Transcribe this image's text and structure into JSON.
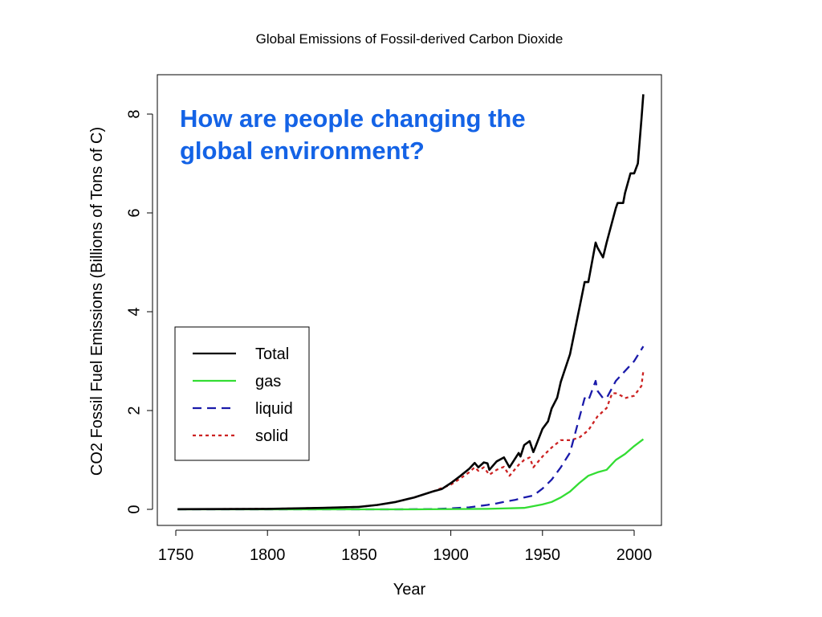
{
  "overlay_text": {
    "line1": "How are people changing the",
    "line2": "global environment?"
  },
  "chart_data": {
    "type": "line",
    "title": "Global Emissions of Fossil-derived Carbon Dioxide",
    "xlabel": "Year",
    "ylabel": "CO2 Fossil Fuel Emissions (Billions of Tons of C)",
    "xlim": [
      1750,
      2010
    ],
    "ylim": [
      0,
      8.6
    ],
    "xticks": [
      1750,
      1800,
      1850,
      1900,
      1950,
      2000
    ],
    "yticks": [
      0,
      2,
      4,
      6,
      8
    ],
    "grid": false,
    "legend_position": "left",
    "series": [
      {
        "name": "Total",
        "color": "#000000",
        "dash": "solid",
        "x": [
          1751,
          1800,
          1830,
          1850,
          1860,
          1870,
          1880,
          1890,
          1895,
          1900,
          1905,
          1910,
          1913,
          1915,
          1918,
          1920,
          1921,
          1925,
          1929,
          1932,
          1937,
          1938,
          1940,
          1943,
          1945,
          1946,
          1950,
          1953,
          1955,
          1958,
          1960,
          1965,
          1970,
          1973,
          1975,
          1979,
          1980,
          1983,
          1985,
          1990,
          1991,
          1994,
          1995,
          1998,
          2000,
          2002,
          2004,
          2005
        ],
        "y": [
          0.003,
          0.01,
          0.03,
          0.05,
          0.09,
          0.15,
          0.24,
          0.36,
          0.41,
          0.53,
          0.67,
          0.82,
          0.94,
          0.85,
          0.95,
          0.93,
          0.8,
          0.97,
          1.05,
          0.85,
          1.14,
          1.07,
          1.3,
          1.38,
          1.16,
          1.25,
          1.63,
          1.78,
          2.04,
          2.26,
          2.58,
          3.14,
          4.05,
          4.6,
          4.6,
          5.4,
          5.3,
          5.1,
          5.4,
          6.1,
          6.2,
          6.2,
          6.4,
          6.8,
          6.8,
          7.0,
          7.9,
          8.4
        ]
      },
      {
        "name": "gas",
        "color": "#33dd33",
        "dash": "solid",
        "x": [
          1751,
          1880,
          1920,
          1940,
          1950,
          1955,
          1960,
          1965,
          1970,
          1975,
          1980,
          1985,
          1990,
          1995,
          2000,
          2005
        ],
        "y": [
          0.0,
          0.0,
          0.01,
          0.03,
          0.1,
          0.15,
          0.24,
          0.36,
          0.53,
          0.68,
          0.75,
          0.8,
          1.0,
          1.12,
          1.28,
          1.42
        ]
      },
      {
        "name": "liquid",
        "color": "#1a1aaa",
        "dash": "dashed",
        "x": [
          1751,
          1870,
          1890,
          1900,
          1910,
          1920,
          1925,
          1930,
          1935,
          1940,
          1945,
          1950,
          1955,
          1960,
          1965,
          1970,
          1973,
          1975,
          1979,
          1980,
          1983,
          1985,
          1990,
          1995,
          2000,
          2005
        ],
        "y": [
          0.0,
          0.0,
          0.005,
          0.02,
          0.04,
          0.09,
          0.12,
          0.16,
          0.19,
          0.24,
          0.28,
          0.42,
          0.6,
          0.85,
          1.15,
          1.84,
          2.25,
          2.2,
          2.6,
          2.4,
          2.25,
          2.25,
          2.6,
          2.8,
          3.0,
          3.3
        ]
      },
      {
        "name": "solid",
        "color": "#cc2222",
        "dash": "dotted",
        "x": [
          1751,
          1800,
          1830,
          1850,
          1860,
          1870,
          1880,
          1890,
          1900,
          1905,
          1910,
          1913,
          1915,
          1918,
          1921,
          1925,
          1929,
          1932,
          1937,
          1940,
          1943,
          1945,
          1950,
          1955,
          1960,
          1965,
          1970,
          1975,
          1980,
          1985,
          1988,
          1990,
          1993,
          1995,
          2000,
          2002,
          2004,
          2005
        ],
        "y": [
          0.003,
          0.01,
          0.03,
          0.05,
          0.09,
          0.15,
          0.24,
          0.36,
          0.5,
          0.62,
          0.75,
          0.85,
          0.78,
          0.85,
          0.7,
          0.8,
          0.86,
          0.68,
          0.9,
          1.0,
          1.05,
          0.85,
          1.07,
          1.25,
          1.4,
          1.4,
          1.45,
          1.6,
          1.88,
          2.05,
          2.35,
          2.35,
          2.3,
          2.25,
          2.3,
          2.4,
          2.5,
          2.8
        ]
      }
    ]
  }
}
